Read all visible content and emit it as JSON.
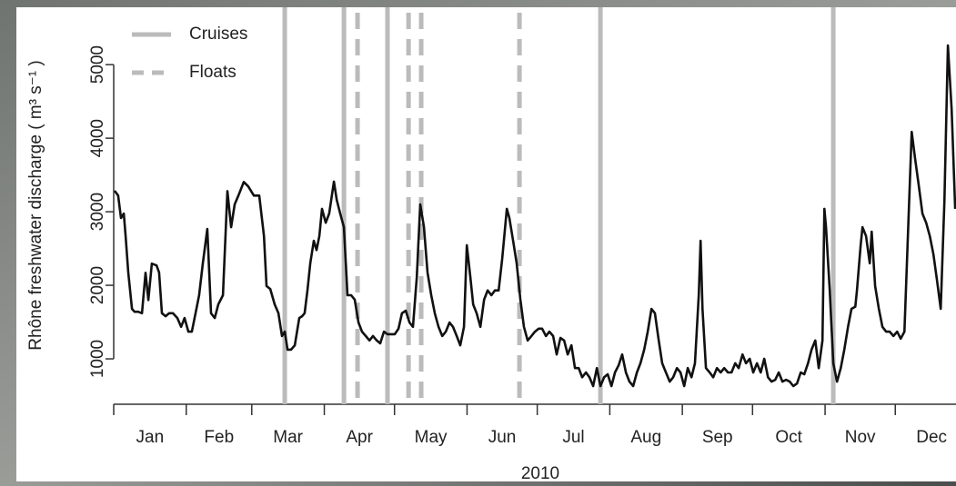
{
  "chart_data": {
    "type": "line",
    "y_label": "Rhône freshwater discharge ( m³ s⁻¹ )",
    "x_label": "2010",
    "color": "#111111",
    "x": [
      0.4,
      1.9,
      3.1,
      4.3,
      5.1,
      6.2,
      7.8,
      8.9,
      10.5,
      12.1,
      13.6,
      14.8,
      16.3,
      18.3,
      19.4,
      20.6,
      22.2,
      23.7,
      25.3,
      27.2,
      28.8,
      30.3,
      31.9,
      33.4,
      35.0,
      36.5,
      38.1,
      40.0,
      41.6,
      43.2,
      44.7,
      46.7,
      48.6,
      50.2,
      51.7,
      53.3,
      55.6,
      57.5,
      59.9,
      62.2,
      64.2,
      65.3,
      66.9,
      68.8,
      70.4,
      71.9,
      73.1,
      74.3,
      75.8,
      77.4,
      79.3,
      80.5,
      81.6,
      82.8,
      84.0,
      85.5,
      86.7,
      87.9,
      89.0,
      90.6,
      92.1,
      94.1,
      95.3,
      96.8,
      98.4,
      99.9,
      101.5,
      103.0,
      104.6,
      106.1,
      107.7,
      109.3,
      110.8,
      112.4,
      113.9,
      115.5,
      117.0,
      118.6,
      120.1,
      121.7,
      123.2,
      124.8,
      126.4,
      127.9,
      129.5,
      131.0,
      132.6,
      134.1,
      135.7,
      137.2,
      138.8,
      140.4,
      141.9,
      143.5,
      145.0,
      146.6,
      148.1,
      149.7,
      150.9,
      152.4,
      153.6,
      155.1,
      156.7,
      158.3,
      159.8,
      161.4,
      162.9,
      164.5,
      166.0,
      168.0,
      169.1,
      170.7,
      172.2,
      173.8,
      175.3,
      176.9,
      178.5,
      180.0,
      181.6,
      183.1,
      184.7,
      186.2,
      187.8,
      189.3,
      190.9,
      192.5,
      194.0,
      195.6,
      197.1,
      198.7,
      200.2,
      201.8,
      203.3,
      204.9,
      206.5,
      208.0,
      209.6,
      211.1,
      212.7,
      214.2,
      215.8,
      217.3,
      218.9,
      220.4,
      222.0,
      223.6,
      225.1,
      226.7,
      228.2,
      229.8,
      231.3,
      232.9,
      234.4,
      236.0,
      237.6,
      239.1,
      240.7,
      242.2,
      243.8,
      245.3,
      246.9,
      248.4,
      250.0,
      250.8,
      251.6,
      253.1,
      254.7,
      256.2,
      257.8,
      259.4,
      260.9,
      262.5,
      264.0,
      265.6,
      267.1,
      268.7,
      270.2,
      271.8,
      273.3,
      274.9,
      276.5,
      278.0,
      279.6,
      281.1,
      282.7,
      284.2,
      285.8,
      287.3,
      288.9,
      290.4,
      292.0,
      293.6,
      295.1,
      296.7,
      298.2,
      299.8,
      301.3,
      302.9,
      303.7,
      304.4,
      306.0,
      307.5,
      309.1,
      310.7,
      312.2,
      313.8,
      315.3,
      316.9,
      317.6,
      319.2,
      320.0,
      321.5,
      323.1,
      323.9,
      325.4,
      327.0,
      328.5,
      330.1,
      331.6,
      333.2,
      334.8,
      336.3,
      337.9,
      339.4,
      341.0,
      342.5,
      344.1,
      345.6,
      347.2,
      348.8,
      350.3,
      351.9,
      353.4,
      355.0,
      356.5,
      358.1,
      359.6
    ],
    "values": [
      3285,
      3220,
      2915,
      2975,
      2670,
      2175,
      1680,
      1640,
      1640,
      1620,
      2170,
      1800,
      2295,
      2270,
      2175,
      1620,
      1580,
      1620,
      1620,
      1555,
      1435,
      1555,
      1370,
      1370,
      1620,
      1865,
      2300,
      2765,
      1620,
      1555,
      1740,
      1865,
      3280,
      2790,
      3100,
      3220,
      3405,
      3345,
      3220,
      3220,
      2670,
      1990,
      1950,
      1740,
      1620,
      1310,
      1370,
      1125,
      1125,
      1185,
      1555,
      1580,
      1620,
      1930,
      2300,
      2605,
      2480,
      2670,
      3040,
      2850,
      2975,
      3410,
      3160,
      2975,
      2790,
      1865,
      1865,
      1805,
      1495,
      1370,
      1310,
      1250,
      1310,
      1250,
      1210,
      1370,
      1335,
      1335,
      1335,
      1410,
      1620,
      1655,
      1495,
      1435,
      2110,
      3100,
      2790,
      2175,
      1865,
      1620,
      1435,
      1310,
      1370,
      1495,
      1435,
      1310,
      1185,
      1435,
      2545,
      2110,
      1740,
      1620,
      1435,
      1805,
      1930,
      1865,
      1930,
      1930,
      2360,
      3040,
      2915,
      2605,
      2300,
      1805,
      1435,
      1250,
      1310,
      1370,
      1410,
      1410,
      1310,
      1370,
      1310,
      1060,
      1285,
      1250,
      1060,
      1185,
      875,
      875,
      750,
      815,
      750,
      630,
      875,
      630,
      750,
      790,
      630,
      815,
      915,
      1060,
      815,
      690,
      630,
      815,
      940,
      1125,
      1370,
      1680,
      1620,
      1250,
      940,
      815,
      690,
      750,
      875,
      815,
      630,
      875,
      750,
      940,
      1865,
      2605,
      1680,
      875,
      815,
      750,
      875,
      815,
      875,
      815,
      815,
      940,
      875,
      1060,
      940,
      1000,
      815,
      940,
      815,
      1000,
      750,
      690,
      715,
      815,
      690,
      715,
      690,
      630,
      665,
      815,
      790,
      940,
      1125,
      1250,
      875,
      1250,
      3040,
      2790,
      1930,
      940,
      690,
      875,
      1125,
      1435,
      1680,
      1710,
      1930,
      2545,
      2790,
      2670,
      2300,
      2730,
      1990,
      1680,
      1435,
      1370,
      1370,
      1310,
      1370,
      1275,
      1370,
      2665,
      4085,
      3715,
      3345,
      2975,
      2850,
      2665,
      2420,
      2050,
      1680,
      3160,
      5260,
      4395,
      3040
    ],
    "xlim": [
      0,
      365
    ],
    "xticks": [
      0,
      31,
      59,
      90,
      120,
      151,
      181,
      212,
      243,
      273,
      304,
      334,
      365
    ],
    "x_tick_labels": [
      "Jan",
      "Feb",
      "Mar",
      "Apr",
      "May",
      "Jun",
      "Jul",
      "Aug",
      "Sep",
      "Oct",
      "Nov",
      "Dec"
    ],
    "ylim": [
      383,
      5780
    ],
    "yticks": [
      1000,
      2000,
      3000,
      4000,
      5000
    ],
    "legend": "top-left",
    "events": [
      {
        "name": "Cruises",
        "color": "#bbbbbb",
        "style": "solid",
        "x": [
          73.1,
          98.4,
          117.0,
          208.0,
          307.5
        ]
      },
      {
        "name": "Floats",
        "color": "#bbbbbb",
        "style": "dashed",
        "x": [
          104.2,
          126.0,
          131.4,
          173.4
        ]
      }
    ]
  }
}
